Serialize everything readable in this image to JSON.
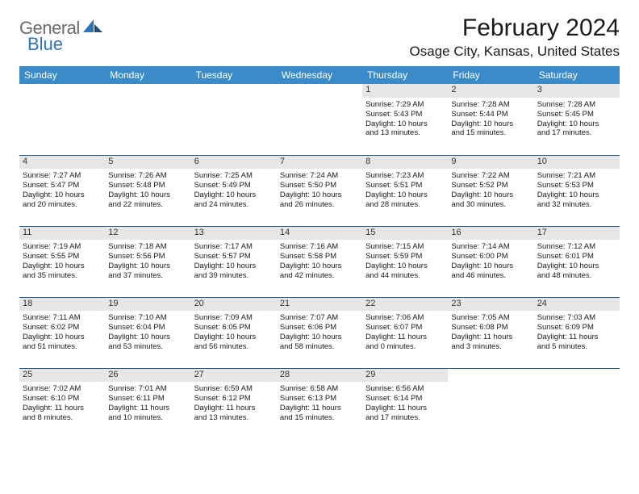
{
  "logo": {
    "general": "General",
    "blue": "Blue"
  },
  "title": "February 2024",
  "location": "Osage City, Kansas, United States",
  "colors": {
    "header_bg": "#3b8bc8",
    "row_border": "#2a5d87",
    "daynum_bg": "#e6e6e6",
    "logo_blue": "#2e75b6",
    "logo_gray": "#6a6a6a"
  },
  "weekdays": [
    "Sunday",
    "Monday",
    "Tuesday",
    "Wednesday",
    "Thursday",
    "Friday",
    "Saturday"
  ],
  "weeks": [
    [
      null,
      null,
      null,
      null,
      {
        "n": "1",
        "sr": "Sunrise: 7:29 AM",
        "ss": "Sunset: 5:43 PM",
        "d1": "Daylight: 10 hours",
        "d2": "and 13 minutes."
      },
      {
        "n": "2",
        "sr": "Sunrise: 7:28 AM",
        "ss": "Sunset: 5:44 PM",
        "d1": "Daylight: 10 hours",
        "d2": "and 15 minutes."
      },
      {
        "n": "3",
        "sr": "Sunrise: 7:28 AM",
        "ss": "Sunset: 5:45 PM",
        "d1": "Daylight: 10 hours",
        "d2": "and 17 minutes."
      }
    ],
    [
      {
        "n": "4",
        "sr": "Sunrise: 7:27 AM",
        "ss": "Sunset: 5:47 PM",
        "d1": "Daylight: 10 hours",
        "d2": "and 20 minutes."
      },
      {
        "n": "5",
        "sr": "Sunrise: 7:26 AM",
        "ss": "Sunset: 5:48 PM",
        "d1": "Daylight: 10 hours",
        "d2": "and 22 minutes."
      },
      {
        "n": "6",
        "sr": "Sunrise: 7:25 AM",
        "ss": "Sunset: 5:49 PM",
        "d1": "Daylight: 10 hours",
        "d2": "and 24 minutes."
      },
      {
        "n": "7",
        "sr": "Sunrise: 7:24 AM",
        "ss": "Sunset: 5:50 PM",
        "d1": "Daylight: 10 hours",
        "d2": "and 26 minutes."
      },
      {
        "n": "8",
        "sr": "Sunrise: 7:23 AM",
        "ss": "Sunset: 5:51 PM",
        "d1": "Daylight: 10 hours",
        "d2": "and 28 minutes."
      },
      {
        "n": "9",
        "sr": "Sunrise: 7:22 AM",
        "ss": "Sunset: 5:52 PM",
        "d1": "Daylight: 10 hours",
        "d2": "and 30 minutes."
      },
      {
        "n": "10",
        "sr": "Sunrise: 7:21 AM",
        "ss": "Sunset: 5:53 PM",
        "d1": "Daylight: 10 hours",
        "d2": "and 32 minutes."
      }
    ],
    [
      {
        "n": "11",
        "sr": "Sunrise: 7:19 AM",
        "ss": "Sunset: 5:55 PM",
        "d1": "Daylight: 10 hours",
        "d2": "and 35 minutes."
      },
      {
        "n": "12",
        "sr": "Sunrise: 7:18 AM",
        "ss": "Sunset: 5:56 PM",
        "d1": "Daylight: 10 hours",
        "d2": "and 37 minutes."
      },
      {
        "n": "13",
        "sr": "Sunrise: 7:17 AM",
        "ss": "Sunset: 5:57 PM",
        "d1": "Daylight: 10 hours",
        "d2": "and 39 minutes."
      },
      {
        "n": "14",
        "sr": "Sunrise: 7:16 AM",
        "ss": "Sunset: 5:58 PM",
        "d1": "Daylight: 10 hours",
        "d2": "and 42 minutes."
      },
      {
        "n": "15",
        "sr": "Sunrise: 7:15 AM",
        "ss": "Sunset: 5:59 PM",
        "d1": "Daylight: 10 hours",
        "d2": "and 44 minutes."
      },
      {
        "n": "16",
        "sr": "Sunrise: 7:14 AM",
        "ss": "Sunset: 6:00 PM",
        "d1": "Daylight: 10 hours",
        "d2": "and 46 minutes."
      },
      {
        "n": "17",
        "sr": "Sunrise: 7:12 AM",
        "ss": "Sunset: 6:01 PM",
        "d1": "Daylight: 10 hours",
        "d2": "and 48 minutes."
      }
    ],
    [
      {
        "n": "18",
        "sr": "Sunrise: 7:11 AM",
        "ss": "Sunset: 6:02 PM",
        "d1": "Daylight: 10 hours",
        "d2": "and 51 minutes."
      },
      {
        "n": "19",
        "sr": "Sunrise: 7:10 AM",
        "ss": "Sunset: 6:04 PM",
        "d1": "Daylight: 10 hours",
        "d2": "and 53 minutes."
      },
      {
        "n": "20",
        "sr": "Sunrise: 7:09 AM",
        "ss": "Sunset: 6:05 PM",
        "d1": "Daylight: 10 hours",
        "d2": "and 56 minutes."
      },
      {
        "n": "21",
        "sr": "Sunrise: 7:07 AM",
        "ss": "Sunset: 6:06 PM",
        "d1": "Daylight: 10 hours",
        "d2": "and 58 minutes."
      },
      {
        "n": "22",
        "sr": "Sunrise: 7:06 AM",
        "ss": "Sunset: 6:07 PM",
        "d1": "Daylight: 11 hours",
        "d2": "and 0 minutes."
      },
      {
        "n": "23",
        "sr": "Sunrise: 7:05 AM",
        "ss": "Sunset: 6:08 PM",
        "d1": "Daylight: 11 hours",
        "d2": "and 3 minutes."
      },
      {
        "n": "24",
        "sr": "Sunrise: 7:03 AM",
        "ss": "Sunset: 6:09 PM",
        "d1": "Daylight: 11 hours",
        "d2": "and 5 minutes."
      }
    ],
    [
      {
        "n": "25",
        "sr": "Sunrise: 7:02 AM",
        "ss": "Sunset: 6:10 PM",
        "d1": "Daylight: 11 hours",
        "d2": "and 8 minutes."
      },
      {
        "n": "26",
        "sr": "Sunrise: 7:01 AM",
        "ss": "Sunset: 6:11 PM",
        "d1": "Daylight: 11 hours",
        "d2": "and 10 minutes."
      },
      {
        "n": "27",
        "sr": "Sunrise: 6:59 AM",
        "ss": "Sunset: 6:12 PM",
        "d1": "Daylight: 11 hours",
        "d2": "and 13 minutes."
      },
      {
        "n": "28",
        "sr": "Sunrise: 6:58 AM",
        "ss": "Sunset: 6:13 PM",
        "d1": "Daylight: 11 hours",
        "d2": "and 15 minutes."
      },
      {
        "n": "29",
        "sr": "Sunrise: 6:56 AM",
        "ss": "Sunset: 6:14 PM",
        "d1": "Daylight: 11 hours",
        "d2": "and 17 minutes."
      },
      null,
      null
    ]
  ]
}
